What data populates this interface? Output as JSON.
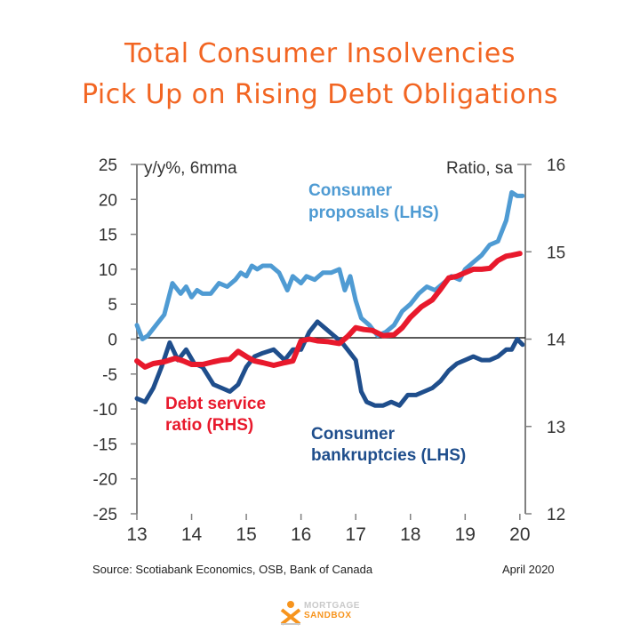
{
  "title": {
    "line1": "Total Consumer Insolvencies",
    "line2": "Pick Up on Rising Debt Obligations"
  },
  "footer": {
    "source": "Source: Scotiabank Economics, OSB, Bank of Canada",
    "date": "April 2020"
  },
  "logo": {
    "line1": "MORTGAGE",
    "line2": "SANDBOX"
  },
  "colors": {
    "proposals": "#4f9bd3",
    "bankruptcies": "#1f4e8c",
    "debt_service": "#e8192c",
    "title": "#f26522"
  },
  "chart_data": {
    "type": "line",
    "title": "Total Consumer Insolvencies Pick Up on Rising Debt Obligations",
    "left_axis_label": "y/y%, 6mma",
    "right_axis_label": "Ratio, sa",
    "ylim_left": [
      -25,
      25
    ],
    "ylim_right": [
      12,
      16
    ],
    "xlim": [
      2013,
      2020.1
    ],
    "x_ticks": [
      {
        "value": 2013,
        "label": "13"
      },
      {
        "value": 2014,
        "label": "14"
      },
      {
        "value": 2015,
        "label": "15"
      },
      {
        "value": 2016,
        "label": "16"
      },
      {
        "value": 2017,
        "label": "17"
      },
      {
        "value": 2018,
        "label": "18"
      },
      {
        "value": 2019,
        "label": "19"
      },
      {
        "value": 2020,
        "label": "20"
      }
    ],
    "y_ticks_left": [
      25,
      20,
      15,
      10,
      5,
      0,
      -5,
      -10,
      -15,
      -20,
      -25
    ],
    "y_ticks_right": [
      16,
      15,
      14,
      13,
      12
    ],
    "annotations": {
      "proposals_line1": "Consumer",
      "proposals_line2": "proposals (LHS)",
      "debt_line1": "Debt service",
      "debt_line2": "ratio (RHS)",
      "bankruptcies_line1": "Consumer",
      "bankruptcies_line2": "bankruptcies (LHS)"
    },
    "series": [
      {
        "name": "Consumer proposals (LHS)",
        "axis": "left",
        "x": [
          2013.0,
          2013.1,
          2013.2,
          2013.35,
          2013.5,
          2013.65,
          2013.8,
          2013.9,
          2014.0,
          2014.1,
          2014.2,
          2014.35,
          2014.5,
          2014.65,
          2014.8,
          2014.9,
          2015.0,
          2015.1,
          2015.2,
          2015.3,
          2015.45,
          2015.6,
          2015.75,
          2015.85,
          2016.0,
          2016.1,
          2016.25,
          2016.4,
          2016.55,
          2016.7,
          2016.8,
          2016.9,
          2017.0,
          2017.1,
          2017.25,
          2017.4,
          2017.55,
          2017.7,
          2017.85,
          2018.0,
          2018.15,
          2018.3,
          2018.45,
          2018.6,
          2018.75,
          2018.9,
          2019.0,
          2019.15,
          2019.3,
          2019.45,
          2019.6,
          2019.75,
          2019.85,
          2019.95,
          2020.05
        ],
        "values": [
          2,
          0,
          0.5,
          2,
          3.5,
          8,
          6.5,
          7.5,
          6,
          7,
          6.5,
          6.5,
          8,
          7.5,
          8.5,
          9.5,
          9,
          10.5,
          10,
          10.5,
          10.5,
          9.5,
          7,
          9,
          8,
          9,
          8.5,
          9.5,
          9.5,
          10,
          7,
          9,
          5.5,
          3,
          2,
          0.5,
          1,
          2,
          4,
          5,
          6.5,
          7.5,
          7,
          8,
          9,
          8.5,
          10,
          11,
          12,
          13.5,
          14,
          17,
          21,
          20.5,
          20.5
        ]
      },
      {
        "name": "Consumer bankruptcies (LHS)",
        "axis": "left",
        "x": [
          2013.0,
          2013.15,
          2013.3,
          2013.45,
          2013.6,
          2013.75,
          2013.9,
          2014.05,
          2014.2,
          2014.4,
          2014.55,
          2014.7,
          2014.85,
          2015.0,
          2015.15,
          2015.3,
          2015.5,
          2015.7,
          2015.85,
          2016.0,
          2016.15,
          2016.3,
          2016.45,
          2016.6,
          2016.75,
          2016.85,
          2017.0,
          2017.1,
          2017.2,
          2017.35,
          2017.5,
          2017.65,
          2017.8,
          2017.95,
          2018.1,
          2018.25,
          2018.4,
          2018.55,
          2018.7,
          2018.85,
          2019.0,
          2019.15,
          2019.3,
          2019.45,
          2019.6,
          2019.75,
          2019.85,
          2019.95,
          2020.05
        ],
        "values": [
          -8.5,
          -9,
          -7,
          -4,
          -0.5,
          -3,
          -1.5,
          -3.5,
          -4,
          -6.5,
          -7,
          -7.5,
          -6.5,
          -4,
          -2.5,
          -2,
          -1.5,
          -3,
          -1.5,
          -1.5,
          1,
          2.5,
          1.5,
          0.5,
          -0.5,
          -1.5,
          -3,
          -7.5,
          -9,
          -9.5,
          -9.5,
          -9,
          -9.5,
          -8,
          -8,
          -7.5,
          -7,
          -6,
          -4.5,
          -3.5,
          -3,
          -2.5,
          -3,
          -3,
          -2.5,
          -1.5,
          -1.5,
          0,
          -0.8
        ]
      },
      {
        "name": "Debt service ratio (RHS)",
        "axis": "right",
        "x": [
          2013.0,
          2013.15,
          2013.3,
          2013.5,
          2013.7,
          2013.85,
          2014.0,
          2014.2,
          2014.4,
          2014.55,
          2014.7,
          2014.85,
          2015.0,
          2015.15,
          2015.3,
          2015.5,
          2015.7,
          2015.85,
          2016.0,
          2016.15,
          2016.3,
          2016.5,
          2016.7,
          2016.85,
          2017.0,
          2017.15,
          2017.3,
          2017.5,
          2017.7,
          2017.85,
          2018.0,
          2018.2,
          2018.4,
          2018.55,
          2018.7,
          2018.85,
          2019.0,
          2019.15,
          2019.3,
          2019.45,
          2019.6,
          2019.75,
          2019.85,
          2020.0
        ],
        "values": [
          13.75,
          13.68,
          13.72,
          13.74,
          13.78,
          13.75,
          13.71,
          13.71,
          13.74,
          13.76,
          13.77,
          13.86,
          13.8,
          13.75,
          13.73,
          13.7,
          13.73,
          13.75,
          13.98,
          14.0,
          13.98,
          13.97,
          13.95,
          14.03,
          14.13,
          14.11,
          14.1,
          14.04,
          14.05,
          14.13,
          14.25,
          14.37,
          14.45,
          14.57,
          14.7,
          14.72,
          14.76,
          14.8,
          14.8,
          14.81,
          14.9,
          14.95,
          14.96,
          14.98
        ]
      }
    ]
  }
}
